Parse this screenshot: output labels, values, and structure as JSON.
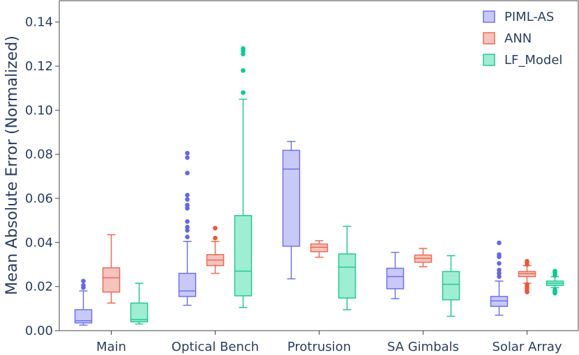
{
  "chart_data": {
    "type": "box",
    "title": "",
    "xlabel": "",
    "ylabel": "Mean Absolute Error (Normalized)",
    "ylim": [
      0,
      0.15
    ],
    "yticks": [
      "0.00",
      "0.02",
      "0.04",
      "0.06",
      "0.08",
      "0.10",
      "0.12",
      "0.14"
    ],
    "ytick_values": [
      0,
      0.02,
      0.04,
      0.06,
      0.08,
      0.1,
      0.12,
      0.14
    ],
    "categories": [
      "Main",
      "Optical Bench",
      "Protrusion",
      "SA Gimbals",
      "Solar Array"
    ],
    "legend_position": "top-right",
    "grid": false,
    "series": [
      {
        "name": "PIML-AS",
        "fill": "#c8c9f7",
        "stroke": "#6f72ef",
        "outlier": "#6366f1",
        "boxes": [
          {
            "min": 0.0025,
            "q1": 0.0035,
            "median": 0.0045,
            "q3": 0.0095,
            "max": 0.018,
            "outliers": [
              0.0195,
              0.0205,
              0.0225
            ]
          },
          {
            "min": 0.0115,
            "q1": 0.0155,
            "median": 0.018,
            "q3": 0.026,
            "max": 0.0405,
            "outliers": [
              0.0425,
              0.0455,
              0.047,
              0.0495,
              0.0555,
              0.057,
              0.0595,
              0.0615,
              0.0715,
              0.0785,
              0.0805
            ]
          },
          {
            "min": 0.0235,
            "q1": 0.0383,
            "median": 0.0733,
            "q3": 0.0818,
            "max": 0.0858,
            "outliers": []
          },
          {
            "min": 0.0145,
            "q1": 0.019,
            "median": 0.0245,
            "q3": 0.0283,
            "max": 0.0355,
            "outliers": []
          },
          {
            "min": 0.007,
            "q1": 0.011,
            "median": 0.0135,
            "q3": 0.0155,
            "max": 0.0225,
            "outliers": [
              0.0245,
              0.026,
              0.0275,
              0.0305,
              0.0335,
              0.0345,
              0.0398
            ]
          }
        ]
      },
      {
        "name": "ANN",
        "fill": "#f6c4bd",
        "stroke": "#ef6a55",
        "outlier": "#ef553b",
        "boxes": [
          {
            "min": 0.0125,
            "q1": 0.0175,
            "median": 0.024,
            "q3": 0.0285,
            "max": 0.0435,
            "outliers": []
          },
          {
            "min": 0.026,
            "q1": 0.0295,
            "median": 0.032,
            "q3": 0.0345,
            "max": 0.0405,
            "outliers": [
              0.042,
              0.0465
            ]
          },
          {
            "min": 0.0333,
            "q1": 0.0358,
            "median": 0.0378,
            "q3": 0.0393,
            "max": 0.0408,
            "outliers": []
          },
          {
            "min": 0.029,
            "q1": 0.031,
            "median": 0.0328,
            "q3": 0.0343,
            "max": 0.0373,
            "outliers": []
          },
          {
            "min": 0.0215,
            "q1": 0.0245,
            "median": 0.0258,
            "q3": 0.0268,
            "max": 0.0295,
            "outliers": [
              0.0175,
              0.018,
              0.019,
              0.02,
              0.021,
              0.03,
              0.031,
              0.0315
            ]
          }
        ]
      },
      {
        "name": "LF_Model",
        "fill": "#9eeed4",
        "stroke": "#22c995",
        "outlier": "#00cc96",
        "boxes": [
          {
            "min": 0.003,
            "q1": 0.004,
            "median": 0.005,
            "q3": 0.0125,
            "max": 0.0215,
            "outliers": []
          },
          {
            "min": 0.0105,
            "q1": 0.0158,
            "median": 0.027,
            "q3": 0.0522,
            "max": 0.105,
            "outliers": [
              0.108,
              0.118,
              0.1255,
              0.127,
              0.128
            ]
          },
          {
            "min": 0.0095,
            "q1": 0.0148,
            "median": 0.0288,
            "q3": 0.0348,
            "max": 0.0473,
            "outliers": []
          },
          {
            "min": 0.0065,
            "q1": 0.014,
            "median": 0.021,
            "q3": 0.0268,
            "max": 0.034,
            "outliers": []
          },
          {
            "min": 0.0195,
            "q1": 0.0205,
            "median": 0.0215,
            "q3": 0.0225,
            "max": 0.0245,
            "outliers": [
              0.017,
              0.0175,
              0.018,
              0.0185,
              0.025,
              0.0258,
              0.0265,
              0.027
            ]
          }
        ]
      }
    ]
  }
}
